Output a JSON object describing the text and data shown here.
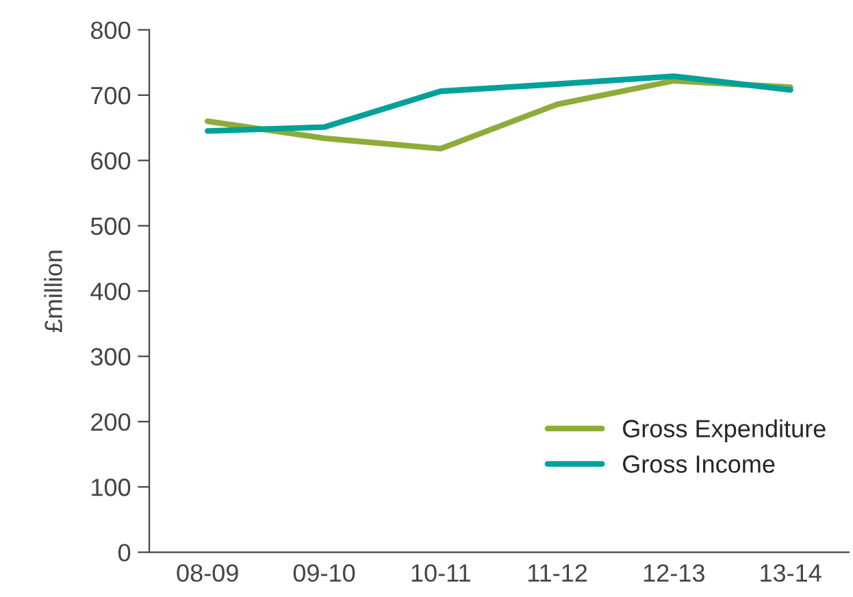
{
  "chart_data": {
    "type": "line",
    "ylabel": "£million",
    "categories": [
      "08-09",
      "09-10",
      "10-11",
      "11-12",
      "12-13",
      "13-14"
    ],
    "series": [
      {
        "name": "Gross Expenditure",
        "color": "#8fac3a",
        "values": [
          660,
          634,
          618,
          686,
          722,
          712
        ]
      },
      {
        "name": "Gross Income",
        "color": "#00a19a",
        "values": [
          645,
          651,
          706,
          717,
          729,
          708
        ]
      }
    ],
    "ylim": [
      0,
      800
    ],
    "yticks": [
      0,
      100,
      200,
      300,
      400,
      500,
      600,
      700,
      800
    ],
    "legend": "bottom right",
    "marker": "none",
    "line_style": "solid"
  }
}
